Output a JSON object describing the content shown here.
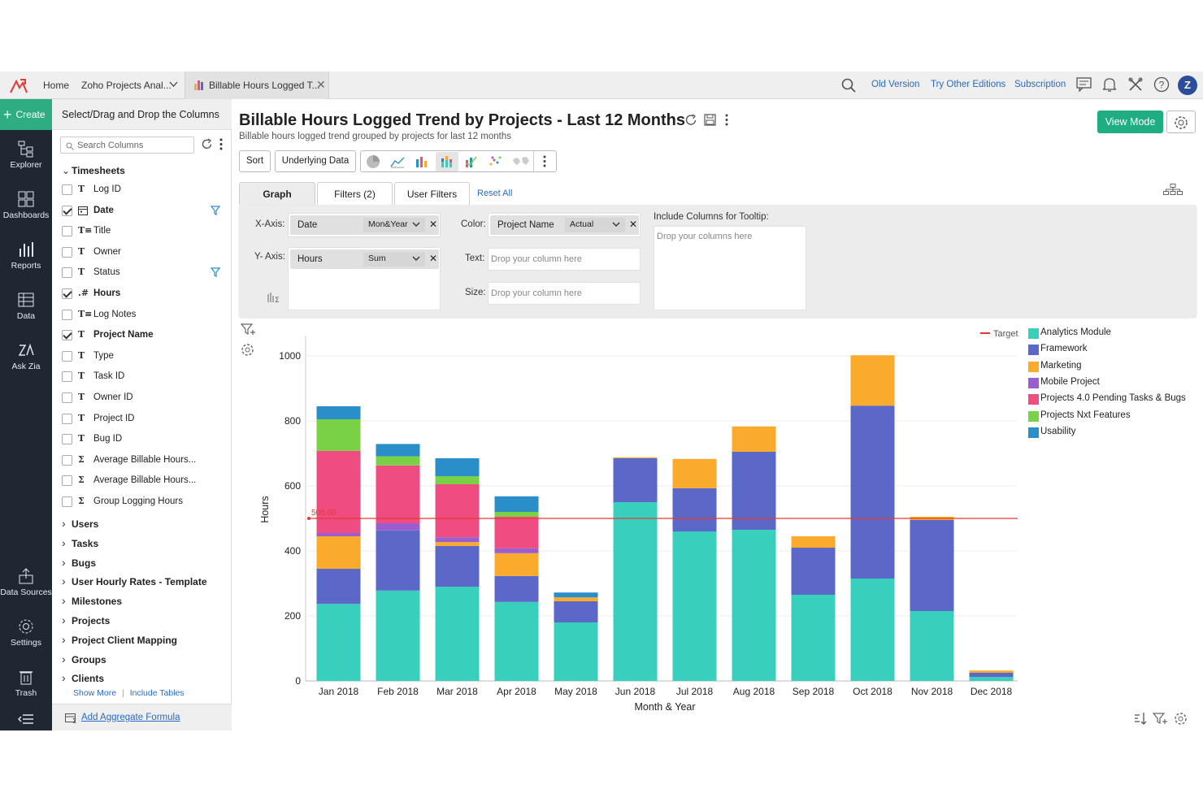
{
  "topbar": {
    "home": "Home",
    "workspace": "Zoho Projects Anal...",
    "active_tab": "Billable Hours Logged T...",
    "old_version": "Old Version",
    "try_editions": "Try Other Editions",
    "subscription": "Subscription",
    "avatar_initial": "Z"
  },
  "leftnav": {
    "create": "Create",
    "items": [
      "Explorer",
      "Dashboards",
      "Reports",
      "Data",
      "Ask Zia",
      "Data Sources",
      "Settings",
      "Trash"
    ]
  },
  "panel": {
    "header": "Select/Drag and Drop the Columns",
    "search_placeholder": "Search Columns",
    "group_open": "Timesheets",
    "fields": [
      {
        "icon": "T",
        "label": "Log ID",
        "checked": false,
        "bold": false,
        "filter": false
      },
      {
        "icon": "cal",
        "label": "Date",
        "checked": true,
        "bold": true,
        "filter": true
      },
      {
        "icon": "T≡",
        "label": "Title",
        "checked": false,
        "bold": false,
        "filter": false
      },
      {
        "icon": "T",
        "label": "Owner",
        "checked": false,
        "bold": false,
        "filter": false
      },
      {
        "icon": "T",
        "label": "Status",
        "checked": false,
        "bold": false,
        "filter": true
      },
      {
        "icon": ".#",
        "label": "Hours",
        "checked": true,
        "bold": true,
        "filter": false
      },
      {
        "icon": "T≡",
        "label": "Log Notes",
        "checked": false,
        "bold": false,
        "filter": false
      },
      {
        "icon": "T",
        "label": "Project Name",
        "checked": true,
        "bold": true,
        "filter": false
      },
      {
        "icon": "T",
        "label": "Type",
        "checked": false,
        "bold": false,
        "filter": false
      },
      {
        "icon": "T",
        "label": "Task ID",
        "checked": false,
        "bold": false,
        "filter": false
      },
      {
        "icon": "T",
        "label": "Owner ID",
        "checked": false,
        "bold": false,
        "filter": false
      },
      {
        "icon": "T",
        "label": "Project ID",
        "checked": false,
        "bold": false,
        "filter": false
      },
      {
        "icon": "T",
        "label": "Bug ID",
        "checked": false,
        "bold": false,
        "filter": false
      },
      {
        "icon": "Σ",
        "label": "Average Billable Hours...",
        "checked": false,
        "bold": false,
        "filter": false
      },
      {
        "icon": "Σ",
        "label": "Average Billable Hours...",
        "checked": false,
        "bold": false,
        "filter": false
      },
      {
        "icon": "Σ",
        "label": "Group Logging Hours",
        "checked": false,
        "bold": false,
        "filter": false
      }
    ],
    "groups": [
      "Users",
      "Tasks",
      "Bugs",
      "User Hourly Rates - Template",
      "Milestones",
      "Projects",
      "Project Client Mapping",
      "Groups",
      "Clients"
    ],
    "show_more": "Show More",
    "include_tables": "Include Tables",
    "add_formula": "Add Aggregate Formula"
  },
  "report": {
    "title": "Billable Hours Logged Trend by Projects - Last 12 Months",
    "subtitle": "Billable hours logged trend grouped by projects for last 12 months",
    "view_mode": "View Mode",
    "sort": "Sort",
    "underlying": "Underlying Data",
    "tabs": [
      "Graph",
      "Filters (2)",
      "User Filters"
    ],
    "reset_all": "Reset All"
  },
  "shelf": {
    "x_label": "X-Axis:",
    "x_field": "Date",
    "x_func": "Mon&Year",
    "y_label": "Y- Axis:",
    "y_field": "Hours",
    "y_func": "Sum",
    "color_label": "Color:",
    "color_field": "Project Name",
    "color_func": "Actual",
    "text_label": "Text:",
    "text_drop": "Drop your column here",
    "size_label": "Size:",
    "size_drop": "Drop your column here",
    "tooltip_label": "Include Columns for Tooltip:",
    "tooltip_drop": "Drop your columns here"
  },
  "chart_data": {
    "type": "bar",
    "stacked": true,
    "xlabel": "Month & Year",
    "ylabel": "Hours",
    "ylim": [
      0,
      1050
    ],
    "yticks": [
      0,
      200,
      400,
      600,
      800,
      1000
    ],
    "grid": true,
    "legend_position": "right",
    "target": {
      "label": "Target",
      "value": 500,
      "value_label": "500.00",
      "color": "#e53935"
    },
    "categories": [
      "Jan 2018",
      "Feb 2018",
      "Mar 2018",
      "Apr 2018",
      "May 2018",
      "Jun 2018",
      "Jul 2018",
      "Aug 2018",
      "Sep 2018",
      "Oct 2018",
      "Nov 2018",
      "Dec 2018"
    ],
    "series": [
      {
        "name": "Analytics Module",
        "color": "#38d0bc",
        "values": [
          237,
          278,
          290,
          243,
          180,
          550,
          460,
          465,
          265,
          315,
          215,
          12
        ]
      },
      {
        "name": "Framework",
        "color": "#5b68c7",
        "values": [
          108,
          185,
          125,
          80,
          65,
          135,
          133,
          240,
          145,
          532,
          280,
          13
        ]
      },
      {
        "name": "Marketing",
        "color": "#fbab2b",
        "values": [
          100,
          0,
          12,
          70,
          12,
          3,
          90,
          78,
          35,
          155,
          10,
          7
        ]
      },
      {
        "name": "Mobile Project",
        "color": "#9a5ecf",
        "values": [
          10,
          22,
          15,
          15,
          0,
          0,
          0,
          0,
          0,
          0,
          0,
          0
        ]
      },
      {
        "name": "Projects 4.0 Pending Tasks & Bugs",
        "color": "#ef4c82",
        "values": [
          253,
          178,
          163,
          97,
          0,
          0,
          0,
          0,
          0,
          0,
          0,
          0
        ]
      },
      {
        "name": "Projects Nxt Features",
        "color": "#79d146",
        "values": [
          97,
          28,
          25,
          15,
          0,
          0,
          0,
          0,
          0,
          0,
          0,
          0
        ]
      },
      {
        "name": "Usability",
        "color": "#2a8ec9",
        "values": [
          40,
          38,
          55,
          48,
          15,
          0,
          0,
          0,
          0,
          0,
          0,
          0
        ]
      }
    ]
  }
}
